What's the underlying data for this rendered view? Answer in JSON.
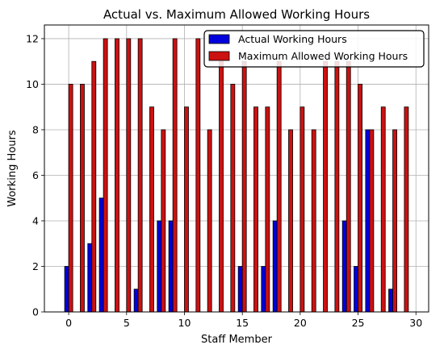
{
  "chart_data": {
    "type": "bar",
    "title": "Actual vs. Maximum Allowed Working Hours",
    "xlabel": "Staff Member",
    "ylabel": "Working Hours",
    "x": [
      0,
      1,
      2,
      3,
      4,
      5,
      6,
      7,
      8,
      9,
      10,
      11,
      12,
      13,
      14,
      15,
      16,
      17,
      18,
      19,
      20,
      21,
      22,
      23,
      24,
      25,
      26,
      27,
      28,
      29
    ],
    "series": [
      {
        "name": "Actual Working Hours",
        "color": "#0000dd",
        "values": [
          2,
          0,
          3,
          5,
          0,
          0,
          1,
          0,
          4,
          4,
          0,
          0,
          0,
          0,
          0,
          2,
          0,
          2,
          4,
          0,
          0,
          0,
          0,
          0,
          4,
          2,
          8,
          0,
          1,
          0
        ]
      },
      {
        "name": "Maximum Allowed Working Hours",
        "color": "#cc1111",
        "values": [
          10,
          10,
          11,
          12,
          12,
          12,
          12,
          9,
          8,
          12,
          9,
          12,
          8,
          11,
          10,
          11,
          9,
          9,
          11,
          8,
          9,
          8,
          11,
          11,
          11,
          10,
          8,
          9,
          8,
          9
        ]
      }
    ],
    "xlim": [
      -2.1,
      31.1
    ],
    "ylim": [
      0,
      12.6
    ],
    "xticks": [
      0,
      5,
      10,
      15,
      20,
      25,
      30
    ],
    "yticks": [
      0,
      2,
      4,
      6,
      8,
      10,
      12
    ],
    "grid": true,
    "legend_position": "top-right"
  }
}
